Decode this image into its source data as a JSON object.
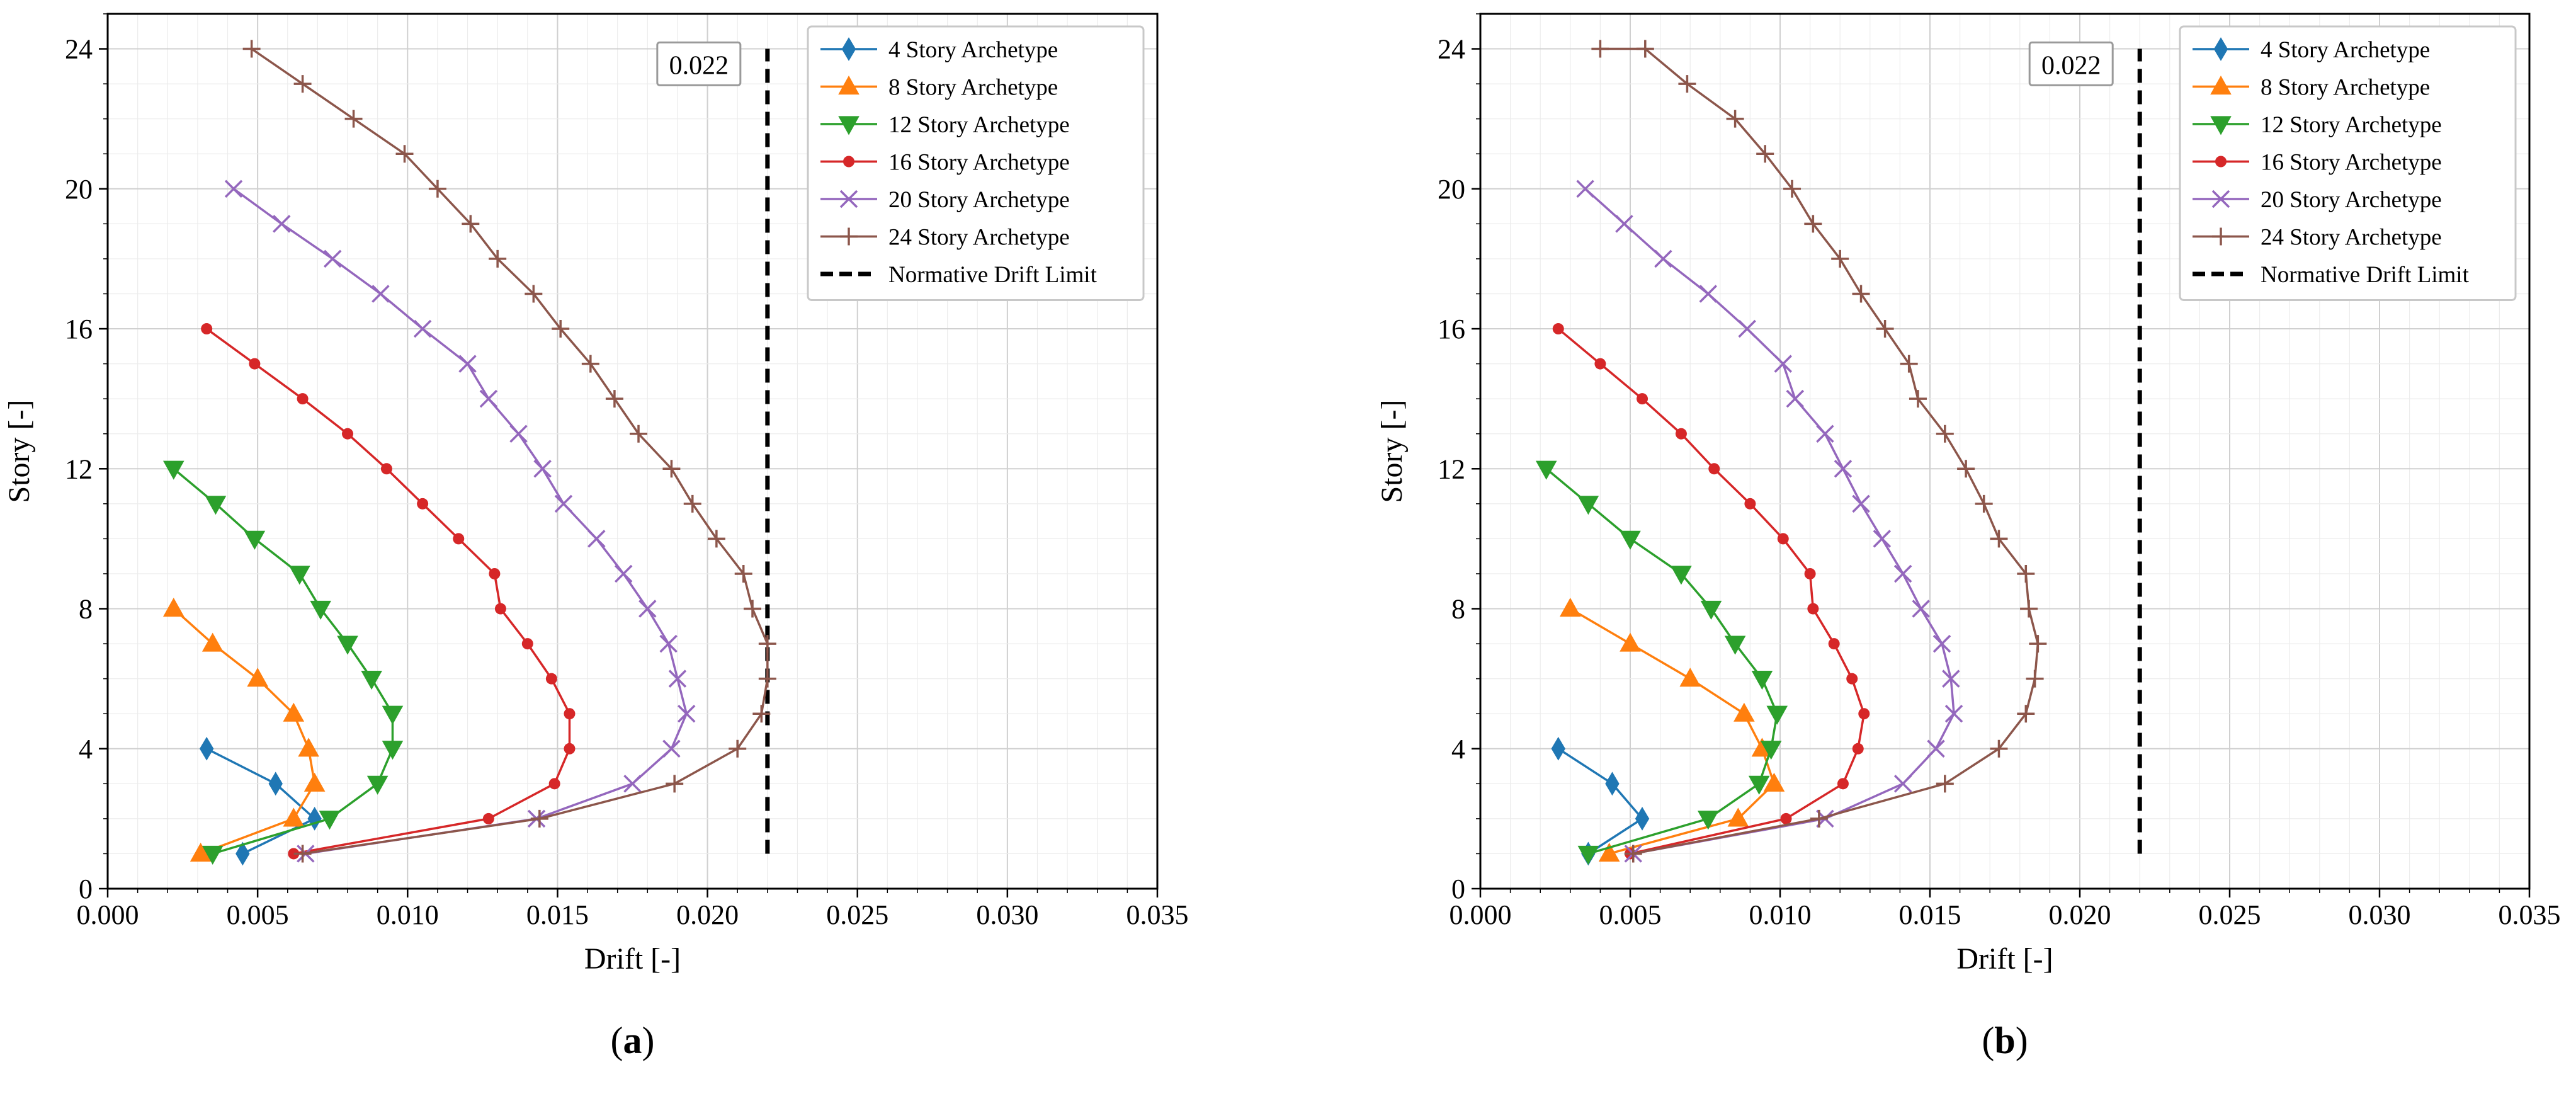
{
  "figure": {
    "panels": [
      "a",
      "b"
    ]
  },
  "chart_data": [
    {
      "type": "line",
      "panel_label": "a",
      "xlabel": "Drift [-]",
      "ylabel": "Story [-]",
      "xlim": [
        0,
        0.035
      ],
      "ylim": [
        0,
        25
      ],
      "xticks": [
        "0.000",
        "0.005",
        "0.010",
        "0.015",
        "0.020",
        "0.025",
        "0.030",
        "0.035"
      ],
      "yticks": [
        "0",
        "4",
        "8",
        "12",
        "16",
        "20",
        "24"
      ],
      "grid": true,
      "legend_position": "top-right",
      "annotation": {
        "text": "0.022",
        "x": 0.022,
        "y": 23.5
      },
      "limit_line": {
        "name": "Normative Drift Limit",
        "x": 0.022,
        "y_from": 1,
        "y_to": 24,
        "color": "#000000"
      },
      "series": [
        {
          "name": "4 Story Archetype",
          "color": "#1f77b4",
          "marker": "diamond",
          "x": [
            0.0045,
            0.0069,
            0.0056,
            0.0033
          ],
          "y": [
            1,
            2,
            3,
            4
          ]
        },
        {
          "name": "8 Story Archetype",
          "color": "#ff7f0e",
          "marker": "triangle-up",
          "x": [
            0.0031,
            0.0062,
            0.0069,
            0.0067,
            0.0062,
            0.005,
            0.0035,
            0.0022
          ],
          "y": [
            1,
            2,
            3,
            4,
            5,
            6,
            7,
            8
          ]
        },
        {
          "name": "12 Story Archetype",
          "color": "#2ca02c",
          "marker": "triangle-down",
          "x": [
            0.0035,
            0.0074,
            0.009,
            0.0095,
            0.0095,
            0.0088,
            0.008,
            0.0071,
            0.0064,
            0.0049,
            0.0036,
            0.0022
          ],
          "y": [
            1,
            2,
            3,
            4,
            5,
            6,
            7,
            8,
            9,
            10,
            11,
            12
          ]
        },
        {
          "name": "16 Story Archetype",
          "color": "#d62728",
          "marker": "circle",
          "x": [
            0.0062,
            0.0127,
            0.0149,
            0.0154,
            0.0154,
            0.0148,
            0.014,
            0.0131,
            0.0129,
            0.0117,
            0.0105,
            0.0093,
            0.008,
            0.0065,
            0.0049,
            0.0033
          ],
          "y": [
            1,
            2,
            3,
            4,
            5,
            6,
            7,
            8,
            9,
            10,
            11,
            12,
            13,
            14,
            15,
            16
          ]
        },
        {
          "name": "20 Story Archetype",
          "color": "#9467bd",
          "marker": "x",
          "x": [
            0.0066,
            0.0143,
            0.0175,
            0.0188,
            0.0193,
            0.019,
            0.0187,
            0.018,
            0.0172,
            0.0163,
            0.0152,
            0.0145,
            0.0137,
            0.0127,
            0.012,
            0.0105,
            0.0091,
            0.0075,
            0.0058,
            0.0042
          ],
          "y": [
            1,
            2,
            3,
            4,
            5,
            6,
            7,
            8,
            9,
            10,
            11,
            12,
            13,
            14,
            15,
            16,
            17,
            18,
            19,
            20
          ]
        },
        {
          "name": "24 Story Archetype",
          "color": "#8c564b",
          "marker": "plus",
          "x": [
            0.0065,
            0.0144,
            0.0189,
            0.021,
            0.0218,
            0.022,
            0.022,
            0.0215,
            0.0212,
            0.0203,
            0.0195,
            0.0188,
            0.0177,
            0.0169,
            0.0161,
            0.0151,
            0.0142,
            0.013,
            0.0121,
            0.011,
            0.0099,
            0.0082,
            0.0065,
            0.0048
          ],
          "y": [
            1,
            2,
            3,
            4,
            5,
            6,
            7,
            8,
            9,
            10,
            11,
            12,
            13,
            14,
            15,
            16,
            17,
            18,
            19,
            20,
            21,
            22,
            23,
            24
          ]
        }
      ]
    },
    {
      "type": "line",
      "panel_label": "b",
      "xlabel": "Drift [-]",
      "ylabel": "Story [-]",
      "xlim": [
        0,
        0.035
      ],
      "ylim": [
        0,
        25
      ],
      "xticks": [
        "0.000",
        "0.005",
        "0.010",
        "0.015",
        "0.020",
        "0.025",
        "0.030",
        "0.035"
      ],
      "yticks": [
        "0",
        "4",
        "8",
        "12",
        "16",
        "20",
        "24"
      ],
      "grid": true,
      "legend_position": "top-right",
      "annotation": {
        "text": "0.022",
        "x": 0.022,
        "y": 23.5
      },
      "limit_line": {
        "name": "Normative Drift Limit",
        "x": 0.022,
        "y_from": 1,
        "y_to": 24,
        "color": "#000000"
      },
      "series": [
        {
          "name": "4 Story Archetype",
          "color": "#1f77b4",
          "marker": "diamond",
          "x": [
            0.0036,
            0.0054,
            0.0044,
            0.0026
          ],
          "y": [
            1,
            2,
            3,
            4
          ]
        },
        {
          "name": "8 Story Archetype",
          "color": "#ff7f0e",
          "marker": "triangle-up",
          "x": [
            0.0043,
            0.0086,
            0.0098,
            0.0094,
            0.0088,
            0.007,
            0.005,
            0.003
          ],
          "y": [
            1,
            2,
            3,
            4,
            5,
            6,
            7,
            8
          ]
        },
        {
          "name": "12 Story Archetype",
          "color": "#2ca02c",
          "marker": "triangle-down",
          "x": [
            0.0036,
            0.0076,
            0.0093,
            0.0097,
            0.0099,
            0.0094,
            0.0085,
            0.0077,
            0.0067,
            0.005,
            0.0036,
            0.0022
          ],
          "y": [
            1,
            2,
            3,
            4,
            5,
            6,
            7,
            8,
            9,
            10,
            11,
            12
          ]
        },
        {
          "name": "16 Story Archetype",
          "color": "#d62728",
          "marker": "circle",
          "x": [
            0.005,
            0.0102,
            0.0121,
            0.0126,
            0.0128,
            0.0124,
            0.0118,
            0.0111,
            0.011,
            0.0101,
            0.009,
            0.0078,
            0.0067,
            0.0054,
            0.004,
            0.0026
          ],
          "y": [
            1,
            2,
            3,
            4,
            5,
            6,
            7,
            8,
            9,
            10,
            11,
            12,
            13,
            14,
            15,
            16
          ]
        },
        {
          "name": "20 Story Archetype",
          "color": "#9467bd",
          "marker": "x",
          "x": [
            0.0051,
            0.0115,
            0.0141,
            0.0152,
            0.0158,
            0.0157,
            0.0154,
            0.0147,
            0.0141,
            0.0134,
            0.0127,
            0.0121,
            0.0115,
            0.0105,
            0.0101,
            0.0089,
            0.0076,
            0.0061,
            0.0048,
            0.0035
          ],
          "y": [
            1,
            2,
            3,
            4,
            5,
            6,
            7,
            8,
            9,
            10,
            11,
            12,
            13,
            14,
            15,
            16,
            17,
            18,
            19,
            20
          ]
        },
        {
          "name": "24 Story Archetype",
          "color": "#8c564b",
          "marker": "plus",
          "x": [
            0.0051,
            0.0113,
            0.0155,
            0.0173,
            0.0182,
            0.0185,
            0.0186,
            0.0183,
            0.0182,
            0.0173,
            0.0168,
            0.0162,
            0.0155,
            0.0146,
            0.0143,
            0.0135,
            0.0127,
            0.012,
            0.0111,
            0.0104,
            0.0095,
            0.0085,
            0.0069,
            0.0055,
            0.004
          ],
          "y": [
            1,
            2,
            3,
            4,
            5,
            6,
            7,
            8,
            9,
            10,
            11,
            12,
            13,
            14,
            15,
            16,
            17,
            18,
            19,
            20,
            21,
            22,
            23,
            24,
            24
          ]
        }
      ]
    }
  ]
}
